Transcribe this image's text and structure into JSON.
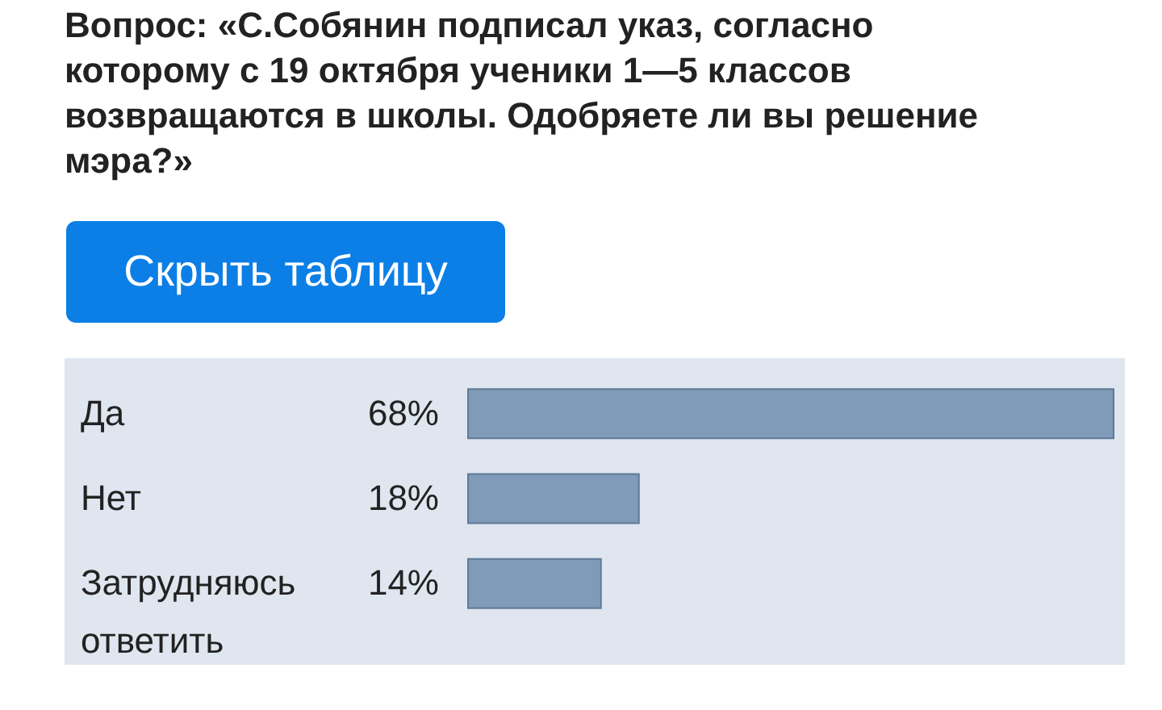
{
  "chart_data": {
    "type": "bar",
    "orientation": "horizontal",
    "title": "Вопрос: «С.Собянин подписал указ, согласно которому с 19 октября ученики 1—5 классов возвращаются в школы. Одобряете ли вы решение мэра?»",
    "annotations": [
      "Скрыть таблицу"
    ],
    "categories": [
      "Да",
      "Нет",
      "Затрудняюсь ответить"
    ],
    "values": [
      68,
      18,
      14
    ],
    "value_labels": [
      "68%",
      "18%",
      "14%"
    ],
    "color": "#7f9bb8"
  }
}
